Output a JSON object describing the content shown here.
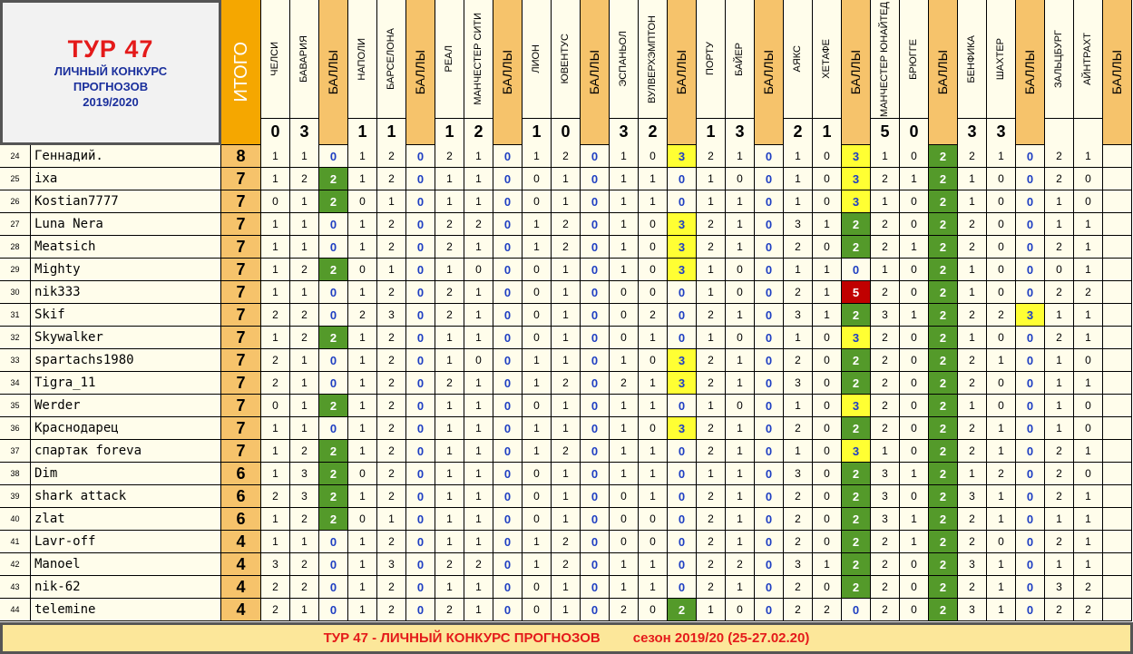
{
  "title": {
    "tour": "ТУР 47",
    "line2": "ЛИЧНЫЙ КОНКУРС",
    "line3": "ПРОГНОЗОВ",
    "season": "2019/2020"
  },
  "itogo_label": "ИТОГО",
  "points_label": "БАЛЛЫ",
  "matches": [
    {
      "home": "ЧЕЛСИ",
      "away": "БАВАРИЯ",
      "home_goals": "0",
      "away_goals": "3"
    },
    {
      "home": "НАПОЛИ",
      "away": "БАРСЕЛОНА",
      "home_goals": "1",
      "away_goals": "1"
    },
    {
      "home": "РЕАЛ",
      "away": "МАНЧЕСТЕР СИТИ",
      "home_goals": "1",
      "away_goals": "2"
    },
    {
      "home": "ЛИОН",
      "away": "ЮВЕНТУС",
      "home_goals": "1",
      "away_goals": "0"
    },
    {
      "home": "ЭСПАНЬОЛ",
      "away": "ВУЛВЕРХЭМПТОН",
      "home_goals": "3",
      "away_goals": "2"
    },
    {
      "home": "ПОРТУ",
      "away": "БАЙЕР",
      "home_goals": "1",
      "away_goals": "3"
    },
    {
      "home": "АЯКС",
      "away": "ХЕТАФЕ",
      "home_goals": "2",
      "away_goals": "1"
    },
    {
      "home": "МАНЧЕСТЕР ЮНАЙТЕД",
      "away": "БРЮГГЕ",
      "home_goals": "5",
      "away_goals": "0"
    },
    {
      "home": "БЕНФИКА",
      "away": "ШАХТЕР",
      "home_goals": "3",
      "away_goals": "3"
    },
    {
      "home": "ЗАЛЬЦБУРГ",
      "away": "АЙНТРАХТ",
      "home_goals": "",
      "away_goals": ""
    }
  ],
  "rows": [
    {
      "n": "24",
      "name": "Геннадий.",
      "total": "8",
      "preds": [
        [
          1,
          1,
          0
        ],
        [
          1,
          2,
          0
        ],
        [
          2,
          1,
          0
        ],
        [
          1,
          2,
          0
        ],
        [
          1,
          0,
          3
        ],
        [
          2,
          1,
          0
        ],
        [
          1,
          0,
          3
        ],
        [
          1,
          0,
          2
        ],
        [
          2,
          1,
          0
        ],
        [
          2,
          1,
          ""
        ]
      ]
    },
    {
      "n": "25",
      "name": "ixa",
      "total": "7",
      "preds": [
        [
          1,
          2,
          2
        ],
        [
          1,
          2,
          0
        ],
        [
          1,
          1,
          0
        ],
        [
          0,
          1,
          0
        ],
        [
          1,
          1,
          0
        ],
        [
          1,
          0,
          0
        ],
        [
          1,
          0,
          3
        ],
        [
          2,
          1,
          2
        ],
        [
          1,
          0,
          0
        ],
        [
          2,
          0,
          ""
        ]
      ]
    },
    {
      "n": "26",
      "name": "Kostian7777",
      "total": "7",
      "preds": [
        [
          0,
          1,
          2
        ],
        [
          0,
          1,
          0
        ],
        [
          1,
          1,
          0
        ],
        [
          0,
          1,
          0
        ],
        [
          1,
          1,
          0
        ],
        [
          1,
          1,
          0
        ],
        [
          1,
          0,
          3
        ],
        [
          1,
          0,
          2
        ],
        [
          1,
          0,
          0
        ],
        [
          1,
          0,
          ""
        ]
      ]
    },
    {
      "n": "27",
      "name": "Luna Nera",
      "total": "7",
      "preds": [
        [
          1,
          1,
          0
        ],
        [
          1,
          2,
          0
        ],
        [
          2,
          2,
          0
        ],
        [
          1,
          2,
          0
        ],
        [
          1,
          0,
          3
        ],
        [
          2,
          1,
          0
        ],
        [
          3,
          1,
          2
        ],
        [
          2,
          0,
          2
        ],
        [
          2,
          0,
          0
        ],
        [
          1,
          1,
          ""
        ]
      ]
    },
    {
      "n": "28",
      "name": "Meatsich",
      "total": "7",
      "preds": [
        [
          1,
          1,
          0
        ],
        [
          1,
          2,
          0
        ],
        [
          2,
          1,
          0
        ],
        [
          1,
          2,
          0
        ],
        [
          1,
          0,
          3
        ],
        [
          2,
          1,
          0
        ],
        [
          2,
          0,
          2
        ],
        [
          2,
          1,
          2
        ],
        [
          2,
          0,
          0
        ],
        [
          2,
          1,
          ""
        ]
      ]
    },
    {
      "n": "29",
      "name": "Mighty",
      "total": "7",
      "preds": [
        [
          1,
          2,
          2
        ],
        [
          0,
          1,
          0
        ],
        [
          1,
          0,
          0
        ],
        [
          0,
          1,
          0
        ],
        [
          1,
          0,
          3
        ],
        [
          1,
          0,
          0
        ],
        [
          1,
          1,
          0
        ],
        [
          1,
          0,
          2
        ],
        [
          1,
          0,
          0
        ],
        [
          0,
          1,
          ""
        ]
      ]
    },
    {
      "n": "30",
      "name": "nik333",
      "total": "7",
      "preds": [
        [
          1,
          1,
          0
        ],
        [
          1,
          2,
          0
        ],
        [
          2,
          1,
          0
        ],
        [
          0,
          1,
          0
        ],
        [
          0,
          0,
          0
        ],
        [
          1,
          0,
          0
        ],
        [
          2,
          1,
          5
        ],
        [
          2,
          0,
          2
        ],
        [
          1,
          0,
          0
        ],
        [
          2,
          2,
          ""
        ]
      ]
    },
    {
      "n": "31",
      "name": "Skif",
      "total": "7",
      "preds": [
        [
          2,
          2,
          0
        ],
        [
          2,
          3,
          0
        ],
        [
          2,
          1,
          0
        ],
        [
          0,
          1,
          0
        ],
        [
          0,
          2,
          0
        ],
        [
          2,
          1,
          0
        ],
        [
          3,
          1,
          2
        ],
        [
          3,
          1,
          2
        ],
        [
          2,
          2,
          3
        ],
        [
          1,
          1,
          ""
        ]
      ]
    },
    {
      "n": "32",
      "name": "Skywalker",
      "total": "7",
      "preds": [
        [
          1,
          2,
          2
        ],
        [
          1,
          2,
          0
        ],
        [
          1,
          1,
          0
        ],
        [
          0,
          1,
          0
        ],
        [
          0,
          1,
          0
        ],
        [
          1,
          0,
          0
        ],
        [
          1,
          0,
          3
        ],
        [
          2,
          0,
          2
        ],
        [
          1,
          0,
          0
        ],
        [
          2,
          1,
          ""
        ]
      ]
    },
    {
      "n": "33",
      "name": "spartachs1980",
      "total": "7",
      "preds": [
        [
          2,
          1,
          0
        ],
        [
          1,
          2,
          0
        ],
        [
          1,
          0,
          0
        ],
        [
          1,
          1,
          0
        ],
        [
          1,
          0,
          3
        ],
        [
          2,
          1,
          0
        ],
        [
          2,
          0,
          2
        ],
        [
          2,
          0,
          2
        ],
        [
          2,
          1,
          0
        ],
        [
          1,
          0,
          ""
        ]
      ]
    },
    {
      "n": "34",
      "name": "Tigra_11",
      "total": "7",
      "preds": [
        [
          2,
          1,
          0
        ],
        [
          1,
          2,
          0
        ],
        [
          2,
          1,
          0
        ],
        [
          1,
          2,
          0
        ],
        [
          2,
          1,
          3
        ],
        [
          2,
          1,
          0
        ],
        [
          3,
          0,
          2
        ],
        [
          2,
          0,
          2
        ],
        [
          2,
          0,
          0
        ],
        [
          1,
          1,
          ""
        ]
      ]
    },
    {
      "n": "35",
      "name": "Werder",
      "total": "7",
      "preds": [
        [
          0,
          1,
          2
        ],
        [
          1,
          2,
          0
        ],
        [
          1,
          1,
          0
        ],
        [
          0,
          1,
          0
        ],
        [
          1,
          1,
          0
        ],
        [
          1,
          0,
          0
        ],
        [
          1,
          0,
          3
        ],
        [
          2,
          0,
          2
        ],
        [
          1,
          0,
          0
        ],
        [
          1,
          0,
          ""
        ]
      ]
    },
    {
      "n": "36",
      "name": "Краснодарец",
      "total": "7",
      "preds": [
        [
          1,
          1,
          0
        ],
        [
          1,
          2,
          0
        ],
        [
          1,
          1,
          0
        ],
        [
          1,
          1,
          0
        ],
        [
          1,
          0,
          3
        ],
        [
          2,
          1,
          0
        ],
        [
          2,
          0,
          2
        ],
        [
          2,
          0,
          2
        ],
        [
          2,
          1,
          0
        ],
        [
          1,
          0,
          ""
        ]
      ]
    },
    {
      "n": "37",
      "name": "спартак foreva",
      "total": "7",
      "preds": [
        [
          1,
          2,
          2
        ],
        [
          1,
          2,
          0
        ],
        [
          1,
          1,
          0
        ],
        [
          1,
          2,
          0
        ],
        [
          1,
          1,
          0
        ],
        [
          2,
          1,
          0
        ],
        [
          1,
          0,
          3
        ],
        [
          1,
          0,
          2
        ],
        [
          2,
          1,
          0
        ],
        [
          2,
          1,
          ""
        ]
      ]
    },
    {
      "n": "38",
      "name": "Dim",
      "total": "6",
      "preds": [
        [
          1,
          3,
          2
        ],
        [
          0,
          2,
          0
        ],
        [
          1,
          1,
          0
        ],
        [
          0,
          1,
          0
        ],
        [
          1,
          1,
          0
        ],
        [
          1,
          1,
          0
        ],
        [
          3,
          0,
          2
        ],
        [
          3,
          1,
          2
        ],
        [
          1,
          2,
          0
        ],
        [
          2,
          0,
          ""
        ]
      ]
    },
    {
      "n": "39",
      "name": "shark attack",
      "total": "6",
      "preds": [
        [
          2,
          3,
          2
        ],
        [
          1,
          2,
          0
        ],
        [
          1,
          1,
          0
        ],
        [
          0,
          1,
          0
        ],
        [
          0,
          1,
          0
        ],
        [
          2,
          1,
          0
        ],
        [
          2,
          0,
          2
        ],
        [
          3,
          0,
          2
        ],
        [
          3,
          1,
          0
        ],
        [
          2,
          1,
          ""
        ]
      ]
    },
    {
      "n": "40",
      "name": "zlat",
      "total": "6",
      "preds": [
        [
          1,
          2,
          2
        ],
        [
          0,
          1,
          0
        ],
        [
          1,
          1,
          0
        ],
        [
          0,
          1,
          0
        ],
        [
          0,
          0,
          0
        ],
        [
          2,
          1,
          0
        ],
        [
          2,
          0,
          2
        ],
        [
          3,
          1,
          2
        ],
        [
          2,
          1,
          0
        ],
        [
          1,
          1,
          ""
        ]
      ]
    },
    {
      "n": "41",
      "name": "Lavr-off",
      "total": "4",
      "preds": [
        [
          1,
          1,
          0
        ],
        [
          1,
          2,
          0
        ],
        [
          1,
          1,
          0
        ],
        [
          1,
          2,
          0
        ],
        [
          0,
          0,
          0
        ],
        [
          2,
          1,
          0
        ],
        [
          2,
          0,
          2
        ],
        [
          2,
          1,
          2
        ],
        [
          2,
          0,
          0
        ],
        [
          2,
          1,
          ""
        ]
      ]
    },
    {
      "n": "42",
      "name": "Manoel",
      "total": "4",
      "preds": [
        [
          3,
          2,
          0
        ],
        [
          1,
          3,
          0
        ],
        [
          2,
          2,
          0
        ],
        [
          1,
          2,
          0
        ],
        [
          1,
          1,
          0
        ],
        [
          2,
          2,
          0
        ],
        [
          3,
          1,
          2
        ],
        [
          2,
          0,
          2
        ],
        [
          3,
          1,
          0
        ],
        [
          1,
          1,
          ""
        ]
      ]
    },
    {
      "n": "43",
      "name": "nik-62",
      "total": "4",
      "preds": [
        [
          2,
          2,
          0
        ],
        [
          1,
          2,
          0
        ],
        [
          1,
          1,
          0
        ],
        [
          0,
          1,
          0
        ],
        [
          1,
          1,
          0
        ],
        [
          2,
          1,
          0
        ],
        [
          2,
          0,
          2
        ],
        [
          2,
          0,
          2
        ],
        [
          2,
          1,
          0
        ],
        [
          3,
          2,
          ""
        ]
      ]
    },
    {
      "n": "44",
      "name": "telemine",
      "total": "4",
      "preds": [
        [
          2,
          1,
          0
        ],
        [
          1,
          2,
          0
        ],
        [
          2,
          1,
          0
        ],
        [
          0,
          1,
          0
        ],
        [
          2,
          0,
          2
        ],
        [
          1,
          0,
          0
        ],
        [
          2,
          2,
          0
        ],
        [
          2,
          0,
          2
        ],
        [
          3,
          1,
          0
        ],
        [
          2,
          2,
          ""
        ]
      ]
    }
  ],
  "footer": {
    "left": "ТУР 47 - ЛИЧНЫЙ КОНКУРС ПРОГНОЗОВ",
    "right": "сезон 2019/20  (25-27.02.20)"
  },
  "colors": {
    "points_header": "#f6c36b",
    "itogo_header": "#f5a700",
    "cell_bg": "#fffdeb",
    "score_green": "#549a2a",
    "score_yellow": "#ffff33",
    "score_red": "#c00000",
    "zero_blue": "#1f3fc2",
    "title_red": "#e41a1a"
  }
}
